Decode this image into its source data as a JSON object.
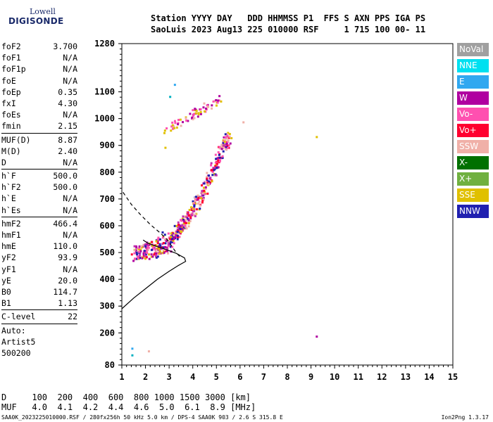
{
  "logo": {
    "line1": "Lowell",
    "line2": "DIGISONDE"
  },
  "header": {
    "line1": "Station YYYY DAY   DDD HHMMSS P1  FFS S AXN PPS IGA PS",
    "line2": "SaoLuis 2023 Aug13 225 010000 RSF     1 715 100 00- 11"
  },
  "params": [
    [
      {
        "k": "foF2",
        "v": "3.700"
      },
      {
        "k": "foF1",
        "v": "N/A"
      },
      {
        "k": "foF1p",
        "v": "N/A"
      },
      {
        "k": "foE",
        "v": "N/A"
      },
      {
        "k": "foEp",
        "v": "0.35"
      },
      {
        "k": "fxI",
        "v": "4.30"
      },
      {
        "k": "foEs",
        "v": "N/A"
      },
      {
        "k": "fmin",
        "v": "2.15"
      }
    ],
    [
      {
        "k": "MUF(D)",
        "v": "8.87"
      },
      {
        "k": "M(D)",
        "v": "2.40"
      },
      {
        "k": "D",
        "v": "N/A"
      }
    ],
    [
      {
        "k": "h`F",
        "v": "500.0"
      },
      {
        "k": "h`F2",
        "v": "500.0"
      },
      {
        "k": "h`E",
        "v": "N/A"
      },
      {
        "k": "h`Es",
        "v": "N/A"
      }
    ],
    [
      {
        "k": "hmF2",
        "v": "466.4"
      },
      {
        "k": "hmF1",
        "v": "N/A"
      },
      {
        "k": "hmE",
        "v": "110.0"
      },
      {
        "k": "yF2",
        "v": "93.9"
      },
      {
        "k": "yF1",
        "v": "N/A"
      },
      {
        "k": "yE",
        "v": "20.0"
      },
      {
        "k": "B0",
        "v": "114.7"
      },
      {
        "k": "B1",
        "v": "1.13"
      }
    ],
    [
      {
        "k": "C-level",
        "v": "22"
      }
    ]
  ],
  "auto": {
    "line1": "Auto:",
    "line2": "Artist5",
    "line3": "500200"
  },
  "legend": [
    {
      "label": "NoVal",
      "color": "#a0a0a0"
    },
    {
      "label": "NNE",
      "color": "#00e0f0"
    },
    {
      "label": "E",
      "color": "#30a8f0"
    },
    {
      "label": "W",
      "color": "#b000a0"
    },
    {
      "label": "Vo-",
      "color": "#ff50b0"
    },
    {
      "label": "Vo+",
      "color": "#ff0030"
    },
    {
      "label": "SSW",
      "color": "#f0b0a8"
    },
    {
      "label": "X-",
      "color": "#007000"
    },
    {
      "label": "X+",
      "color": "#70b040"
    },
    {
      "label": "SSE",
      "color": "#e0c000"
    },
    {
      "label": "NNW",
      "color": "#2020b0"
    }
  ],
  "bottom": {
    "d_line": "D     100  200  400  600  800 1000 1500 3000 [km]",
    "muf_line": "MUF   4.0  4.1  4.2  4.4  4.6  5.0  6.1  8.9 [MHz]"
  },
  "footer": {
    "left": "SAA0K_2023225010000.RSF / 280fx256h 50 kHz 5.0 km / DPS-4 SAA0K 903 / 2.6 S 315.8 E",
    "right": "Ion2Png 1.3.17"
  },
  "chart_data": {
    "type": "scatter",
    "xlim": [
      1,
      15
    ],
    "ylim": [
      80,
      1280
    ],
    "x_ticks": [
      1,
      2,
      3,
      4,
      5,
      6,
      7,
      8,
      9,
      10,
      11,
      12,
      13,
      14,
      15
    ],
    "y_ticks": [
      80,
      200,
      300,
      400,
      500,
      600,
      700,
      800,
      900,
      1000,
      1100,
      1280
    ],
    "echo_traces": [
      {
        "name": "O-trace",
        "points": [
          [
            1.6,
            500
          ],
          [
            1.9,
            505
          ],
          [
            2.2,
            512
          ],
          [
            2.5,
            522
          ],
          [
            2.8,
            540
          ],
          [
            3.1,
            560
          ],
          [
            3.4,
            590
          ],
          [
            3.7,
            625
          ],
          [
            4.0,
            665
          ],
          [
            4.3,
            715
          ],
          [
            4.6,
            770
          ],
          [
            4.9,
            830
          ],
          [
            5.2,
            890
          ],
          [
            5.5,
            935
          ]
        ]
      },
      {
        "name": "Upper trace",
        "points": [
          [
            2.8,
            960
          ],
          [
            3.2,
            980
          ],
          [
            3.6,
            1000
          ],
          [
            4.0,
            1020
          ],
          [
            4.4,
            1040
          ],
          [
            4.8,
            1060
          ],
          [
            5.2,
            1080
          ]
        ]
      }
    ],
    "profile_solid": [
      [
        1,
        290
      ],
      [
        1.5,
        330
      ],
      [
        2.0,
        365
      ],
      [
        2.5,
        400
      ],
      [
        3.0,
        430
      ],
      [
        3.4,
        452
      ],
      [
        3.7,
        467
      ],
      [
        3.65,
        480
      ],
      [
        3.3,
        497
      ],
      [
        2.9,
        510
      ],
      [
        2.5,
        522
      ],
      [
        2.1,
        535
      ],
      [
        1.9,
        547
      ]
    ],
    "profile_dashed": [
      [
        1.05,
        725
      ],
      [
        1.4,
        680
      ],
      [
        1.8,
        640
      ],
      [
        2.2,
        605
      ],
      [
        2.6,
        575
      ],
      [
        2.9,
        550
      ],
      [
        3.1,
        525
      ],
      [
        3.3,
        500
      ],
      [
        3.5,
        480
      ]
    ]
  }
}
